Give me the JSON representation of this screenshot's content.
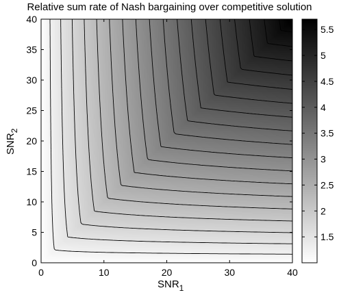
{
  "chart_data": {
    "type": "heatmap",
    "title": "Relative sum rate of Nash bargaining over competitive solution",
    "xlabel": "SNR",
    "xlabel_sub": "1",
    "ylabel": "SNR",
    "ylabel_sub": "2",
    "xlim": [
      0,
      40
    ],
    "ylim": [
      0,
      40
    ],
    "xticks": [
      "0",
      "10",
      "20",
      "30",
      "40"
    ],
    "yticks": [
      "0",
      "5",
      "10",
      "15",
      "20",
      "25",
      "30",
      "35",
      "40"
    ],
    "colorbar": {
      "ticks": [
        "1.5",
        "2",
        "2.5",
        "3",
        "3.5",
        "4",
        "4.5",
        "5",
        "5.5"
      ],
      "min": 1.0,
      "max": 5.7,
      "colormap": "gray-reversed"
    },
    "contour_levels": [
      1.25,
      1.5,
      1.75,
      2.0,
      2.25,
      2.5,
      2.75,
      3.0,
      3.25,
      3.5,
      3.75,
      4.0,
      4.25,
      4.5,
      4.75,
      5.0,
      5.25,
      5.5
    ],
    "shading": "white at low values (near SNR = 0 and along the axes), darkest near SNR1 = SNR2 = 40; contour lines shaped as nested hyperbola-like curves opening toward the upper right"
  }
}
